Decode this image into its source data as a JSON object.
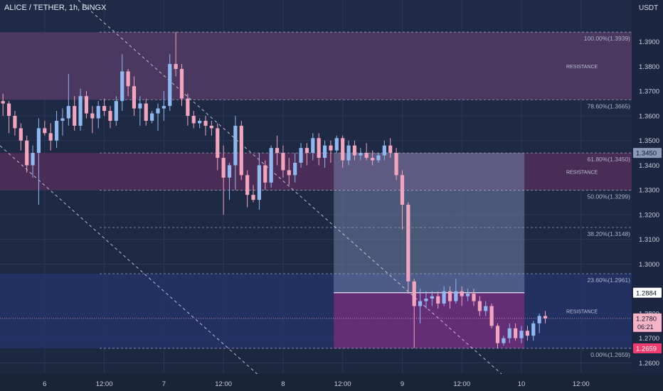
{
  "header": {
    "title": "ALICE / TETHER, 1h, BINGX",
    "currency": "USDT"
  },
  "colors": {
    "bull": "#8fb8f0",
    "bear": "#f2a5bd",
    "grid": "#2a3756",
    "fib_line": "#b8bfd0",
    "axis_text": "#c8cedb",
    "band_top": "#5a3d6a",
    "band_mid": "#5a2f5c",
    "band_low": "#25336e",
    "price_badge": "#f5b4c6",
    "low_badge": "#f03c6e"
  },
  "chart_data": {
    "type": "candlestick",
    "symbol": "ALICE / TETHER",
    "timeframe": "1h",
    "exchange": "BINGX",
    "ylim": [
      1.2561,
      1.4069
    ],
    "yticks": [
      1.39,
      1.38,
      1.37,
      1.36,
      1.35,
      1.34,
      1.33,
      1.32,
      1.31,
      1.3,
      1.28,
      1.27,
      1.26
    ],
    "ytick_labels": [
      "1.3900",
      "1.3800",
      "1.3700",
      "1.3600",
      "1.3500",
      "1.3400",
      "1.3300",
      "1.3200",
      "1.3100",
      "1.3000",
      "1.2800",
      "1.2700",
      "1.2600"
    ],
    "xlim": [
      0,
      106
    ],
    "xticks": [
      {
        "x": 7.5,
        "label": "6"
      },
      {
        "x": 17.5,
        "label": "12:00"
      },
      {
        "x": 27.5,
        "label": "7"
      },
      {
        "x": 37.5,
        "label": "12:00"
      },
      {
        "x": 47.5,
        "label": "8"
      },
      {
        "x": 57.5,
        "label": "12:00"
      },
      {
        "x": 67.5,
        "label": "9"
      },
      {
        "x": 77.5,
        "label": "12:00"
      },
      {
        "x": 87.5,
        "label": "10"
      },
      {
        "x": 97.5,
        "label": "12:00"
      }
    ],
    "fib_levels": [
      {
        "ratio_label": "100.00%(1.3939)",
        "value": 1.3939
      },
      {
        "ratio_label": "78.60%(1.3665)",
        "value": 1.3665
      },
      {
        "ratio_label": "61.80%(1.3450)",
        "value": 1.345
      },
      {
        "ratio_label": "50.00%(1.3299)",
        "value": 1.3299
      },
      {
        "ratio_label": "38.20%(1.3148)",
        "value": 1.3148
      },
      {
        "ratio_label": "23.60%(1.2961)",
        "value": 1.2961
      },
      {
        "ratio_label": "0.00%(1.2659)",
        "value": 1.2659
      }
    ],
    "zones": [
      {
        "label": "RESISTANCE",
        "top": 1.3939,
        "bottom": 1.3665
      },
      {
        "label": "RESISTANCE",
        "top": 1.345,
        "bottom": 1.3299
      },
      {
        "label": "RESISTANCE",
        "top": 1.2961,
        "bottom": 1.2659
      }
    ],
    "position_box": {
      "x_start": 56,
      "x_end": 88,
      "entry": 1.2884,
      "target": 1.345,
      "stop": 1.2659
    },
    "last_price": {
      "value": 1.278,
      "label": "1.2780",
      "countdown": "06:21"
    },
    "marker_labels": [
      {
        "value": 1.345,
        "label": "1.3450"
      },
      {
        "value": 1.2884,
        "label": "1.2884"
      },
      {
        "value": 1.2659,
        "label": "1.2659"
      }
    ],
    "candles": [
      [
        0,
        1.366,
        1.369,
        1.36,
        1.365
      ],
      [
        1,
        1.365,
        1.366,
        1.353,
        1.36
      ],
      [
        2,
        1.36,
        1.362,
        1.352,
        1.355
      ],
      [
        3,
        1.355,
        1.357,
        1.346,
        1.35
      ],
      [
        4,
        1.35,
        1.352,
        1.337,
        1.34
      ],
      [
        5,
        1.34,
        1.348,
        1.335,
        1.345
      ],
      [
        6,
        1.345,
        1.359,
        1.324,
        1.355
      ],
      [
        7,
        1.355,
        1.358,
        1.352,
        1.353
      ],
      [
        8,
        1.353,
        1.357,
        1.346,
        1.35
      ],
      [
        9,
        1.35,
        1.362,
        1.347,
        1.358
      ],
      [
        10,
        1.358,
        1.363,
        1.352,
        1.359
      ],
      [
        11,
        1.359,
        1.377,
        1.356,
        1.364
      ],
      [
        12,
        1.364,
        1.368,
        1.354,
        1.356
      ],
      [
        13,
        1.356,
        1.371,
        1.354,
        1.368
      ],
      [
        14,
        1.368,
        1.37,
        1.359,
        1.361
      ],
      [
        15,
        1.361,
        1.364,
        1.353,
        1.359
      ],
      [
        16,
        1.359,
        1.366,
        1.355,
        1.364
      ],
      [
        17,
        1.364,
        1.367,
        1.36,
        1.362
      ],
      [
        18,
        1.362,
        1.364,
        1.355,
        1.358
      ],
      [
        19,
        1.358,
        1.368,
        1.356,
        1.366
      ],
      [
        20,
        1.366,
        1.385,
        1.362,
        1.378
      ],
      [
        21,
        1.378,
        1.379,
        1.368,
        1.372
      ],
      [
        22,
        1.372,
        1.376,
        1.36,
        1.363
      ],
      [
        23,
        1.363,
        1.368,
        1.356,
        1.365
      ],
      [
        24,
        1.365,
        1.367,
        1.356,
        1.358
      ],
      [
        25,
        1.358,
        1.362,
        1.357,
        1.361
      ],
      [
        26,
        1.361,
        1.365,
        1.354,
        1.363
      ],
      [
        27,
        1.363,
        1.37,
        1.358,
        1.364
      ],
      [
        28,
        1.364,
        1.385,
        1.362,
        1.381
      ],
      [
        29,
        1.381,
        1.394,
        1.376,
        1.379
      ],
      [
        30,
        1.379,
        1.381,
        1.364,
        1.367
      ],
      [
        31,
        1.367,
        1.369,
        1.356,
        1.36
      ],
      [
        32,
        1.36,
        1.362,
        1.355,
        1.357
      ],
      [
        33,
        1.357,
        1.359,
        1.355,
        1.358
      ],
      [
        34,
        1.358,
        1.36,
        1.352,
        1.356
      ],
      [
        35,
        1.356,
        1.358,
        1.352,
        1.355
      ],
      [
        36,
        1.355,
        1.357,
        1.338,
        1.343
      ],
      [
        37,
        1.343,
        1.348,
        1.32,
        1.335
      ],
      [
        38,
        1.335,
        1.341,
        1.326,
        1.34
      ],
      [
        39,
        1.34,
        1.36,
        1.33,
        1.356
      ],
      [
        40,
        1.356,
        1.358,
        1.334,
        1.336
      ],
      [
        41,
        1.336,
        1.338,
        1.323,
        1.328
      ],
      [
        42,
        1.328,
        1.332,
        1.325,
        1.326
      ],
      [
        43,
        1.326,
        1.345,
        1.322,
        1.34
      ],
      [
        44,
        1.34,
        1.342,
        1.33,
        1.333
      ],
      [
        45,
        1.333,
        1.348,
        1.331,
        1.347
      ],
      [
        46,
        1.347,
        1.352,
        1.34,
        1.345
      ],
      [
        47,
        1.345,
        1.348,
        1.335,
        1.338
      ],
      [
        48,
        1.338,
        1.343,
        1.332,
        1.336
      ],
      [
        49,
        1.336,
        1.345,
        1.333,
        1.341
      ],
      [
        50,
        1.341,
        1.349,
        1.339,
        1.347
      ],
      [
        51,
        1.347,
        1.349,
        1.34,
        1.345
      ],
      [
        52,
        1.345,
        1.353,
        1.342,
        1.351
      ],
      [
        53,
        1.351,
        1.353,
        1.34,
        1.343
      ],
      [
        54,
        1.343,
        1.35,
        1.339,
        1.348
      ],
      [
        55,
        1.348,
        1.35,
        1.341,
        1.346
      ],
      [
        56,
        1.346,
        1.352,
        1.345,
        1.351
      ],
      [
        57,
        1.351,
        1.352,
        1.339,
        1.342
      ],
      [
        58,
        1.342,
        1.35,
        1.34,
        1.348
      ],
      [
        59,
        1.348,
        1.35,
        1.342,
        1.344
      ],
      [
        60,
        1.344,
        1.347,
        1.342,
        1.345
      ],
      [
        61,
        1.345,
        1.349,
        1.342,
        1.343
      ],
      [
        62,
        1.343,
        1.346,
        1.34,
        1.342
      ],
      [
        63,
        1.342,
        1.345,
        1.341,
        1.344
      ],
      [
        64,
        1.344,
        1.35,
        1.342,
        1.348
      ],
      [
        65,
        1.348,
        1.351,
        1.343,
        1.345
      ],
      [
        66,
        1.345,
        1.347,
        1.334,
        1.336
      ],
      [
        67,
        1.336,
        1.338,
        1.314,
        1.324
      ],
      [
        68,
        1.324,
        1.325,
        1.288,
        1.293
      ],
      [
        69,
        1.293,
        1.294,
        1.266,
        1.283
      ],
      [
        70,
        1.283,
        1.29,
        1.276,
        1.285
      ],
      [
        71,
        1.285,
        1.289,
        1.282,
        1.286
      ],
      [
        72,
        1.286,
        1.289,
        1.283,
        1.287
      ],
      [
        73,
        1.287,
        1.289,
        1.282,
        1.284
      ],
      [
        74,
        1.284,
        1.291,
        1.283,
        1.289
      ],
      [
        75,
        1.289,
        1.291,
        1.282,
        1.285
      ],
      [
        76,
        1.285,
        1.294,
        1.284,
        1.289
      ],
      [
        77,
        1.289,
        1.291,
        1.283,
        1.287
      ],
      [
        78,
        1.287,
        1.29,
        1.285,
        1.288
      ],
      [
        79,
        1.288,
        1.29,
        1.283,
        1.285
      ],
      [
        80,
        1.285,
        1.287,
        1.279,
        1.281
      ],
      [
        81,
        1.281,
        1.285,
        1.279,
        1.283
      ],
      [
        82,
        1.283,
        1.284,
        1.274,
        1.275
      ],
      [
        83,
        1.275,
        1.276,
        1.266,
        1.268
      ],
      [
        84,
        1.268,
        1.271,
        1.267,
        1.27
      ],
      [
        85,
        1.27,
        1.276,
        1.268,
        1.274
      ],
      [
        86,
        1.274,
        1.276,
        1.269,
        1.27
      ],
      [
        87,
        1.27,
        1.275,
        1.268,
        1.273
      ],
      [
        88,
        1.273,
        1.275,
        1.269,
        1.271
      ],
      [
        89,
        1.271,
        1.277,
        1.269,
        1.276
      ],
      [
        90,
        1.276,
        1.28,
        1.272,
        1.279
      ],
      [
        91,
        1.279,
        1.281,
        1.276,
        1.278
      ]
    ]
  }
}
